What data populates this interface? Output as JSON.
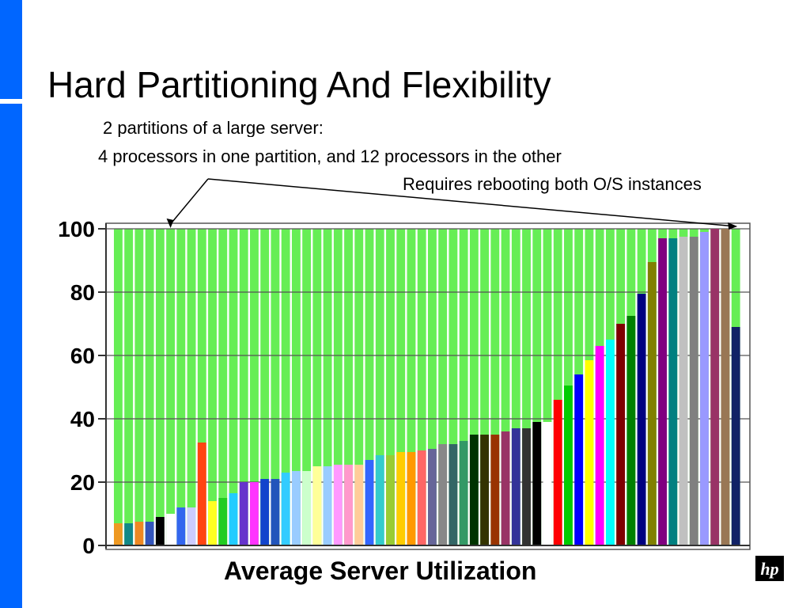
{
  "theme": {
    "accent": "#0066ff",
    "plot_fill": "#66ee55",
    "white": "#ffffff"
  },
  "slide": {
    "title": "Hard Partitioning And Flexibility",
    "subtitle_line1": "2 partitions of a large server:",
    "subtitle_line2": "4 processors in one partition, and 12 processors in the other",
    "subtitle_line3": "Requires rebooting both O/S instances",
    "caption": "Average Server Utilization",
    "logo_icon": "hp-logo-icon"
  },
  "chart_data": {
    "type": "bar",
    "title": "",
    "xlabel": "",
    "ylabel": "",
    "ylim": [
      0,
      100
    ],
    "yticks": [
      "0",
      "20",
      "40",
      "60",
      "80",
      "100"
    ],
    "grid": true,
    "background_fill": "#66ee55",
    "values": [
      7,
      7,
      7.5,
      7.5,
      9,
      10,
      12,
      12,
      32.5,
      14,
      15,
      16.5,
      20,
      20,
      21,
      21,
      23,
      23.5,
      23.5,
      25,
      25,
      25.5,
      25.5,
      25.5,
      27,
      28.5,
      28.5,
      29.5,
      29.5,
      30,
      30.5,
      32,
      32,
      33,
      35,
      35,
      35,
      36,
      37,
      37,
      39,
      39,
      46,
      50.5,
      54,
      58.5,
      63,
      65,
      70,
      72.5,
      79.5,
      89.5,
      97,
      97,
      97.5,
      97.5,
      99,
      100,
      100,
      69
    ],
    "colors": [
      "#ee9922",
      "#118888",
      "#ee8822",
      "#3355bb",
      "#000000",
      "#ffffff",
      "#3366ee",
      "#ccccff",
      "#ff4411",
      "#ffff22",
      "#22cc22",
      "#22ccff",
      "#6633cc",
      "#ff33ff",
      "#1144cc",
      "#2255bb",
      "#33ccff",
      "#99ccff",
      "#ccffcc",
      "#ffff99",
      "#99ccff",
      "#ff99ff",
      "#ff99cc",
      "#ffcc99",
      "#3366ff",
      "#33cccc",
      "#99cc33",
      "#ffcc00",
      "#ff9900",
      "#ff6666",
      "#666699",
      "#888888",
      "#336666",
      "#339966",
      "#003300",
      "#333300",
      "#993300",
      "#993366",
      "#333399",
      "#333333",
      "#000000",
      "#ffffff",
      "#ff0000",
      "#00cc00",
      "#0000ff",
      "#ffff00",
      "#ff00ff",
      "#00ffff",
      "#800000",
      "#008000",
      "#000080",
      "#808000",
      "#800080",
      "#008080",
      "#c0c0c0",
      "#808080",
      "#9999ff",
      "#993366",
      "#997755",
      "#112266"
    ],
    "annotation_arrow_targets": [
      5,
      59
    ]
  }
}
